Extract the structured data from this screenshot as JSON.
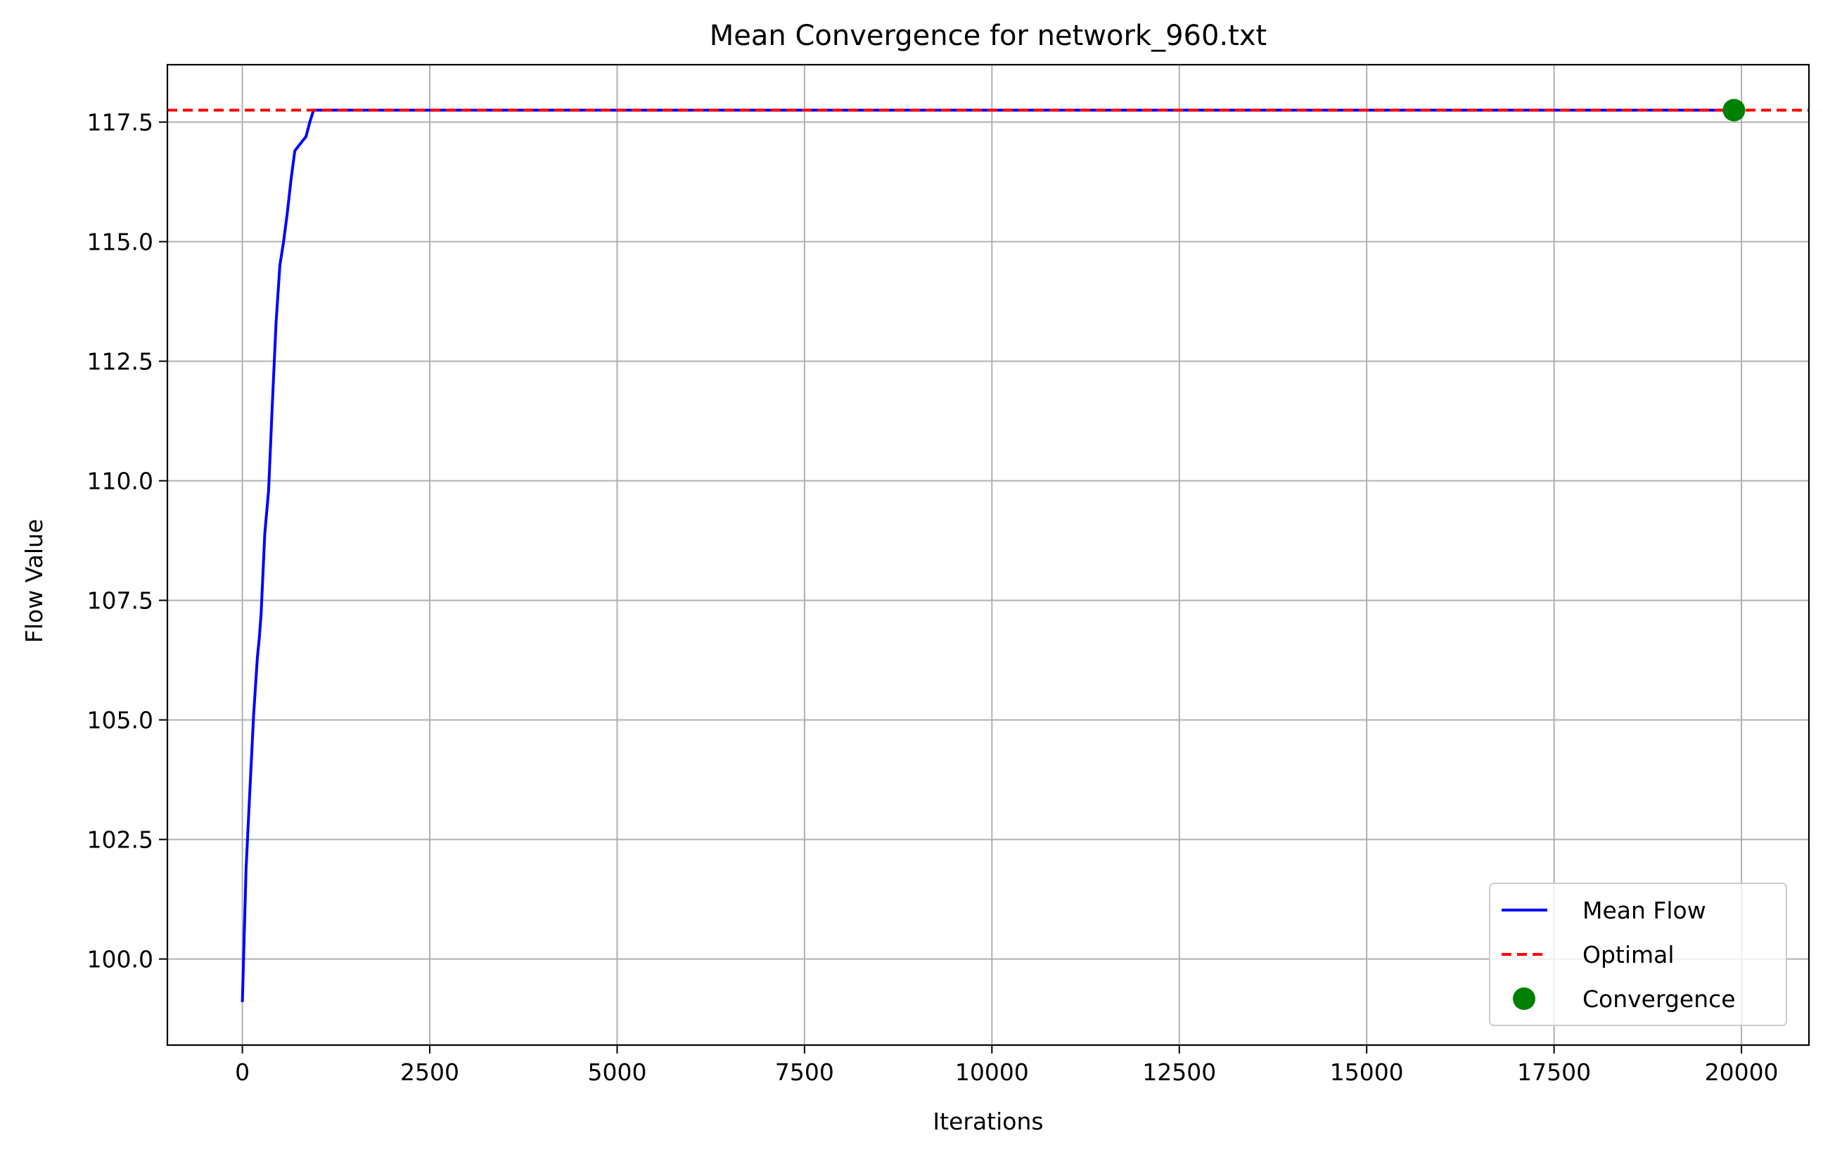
{
  "chart_data": {
    "type": "line",
    "title": "Mean Convergence for network_960.txt",
    "xlabel": "Iterations",
    "ylabel": "Flow Value",
    "xlim": [
      -1000,
      20900
    ],
    "ylim": [
      98.2,
      118.7
    ],
    "xticks": [
      0,
      2500,
      5000,
      7500,
      10000,
      12500,
      15000,
      17500,
      20000
    ],
    "xtick_labels": [
      "0",
      "2500",
      "5000",
      "7500",
      "10000",
      "12500",
      "15000",
      "17500",
      "20000"
    ],
    "yticks": [
      100.0,
      102.5,
      105.0,
      107.5,
      110.0,
      112.5,
      115.0,
      117.5
    ],
    "ytick_labels": [
      "100.0",
      "102.5",
      "105.0",
      "107.5",
      "110.0",
      "112.5",
      "115.0",
      "117.5"
    ],
    "grid": true,
    "legend_position": "lower-right",
    "series": [
      {
        "name": "Mean Flow",
        "kind": "line",
        "color": "#0000ff",
        "x": [
          0,
          50,
          100,
          150,
          200,
          225,
          250,
          300,
          350,
          400,
          450,
          500,
          550,
          600,
          650,
          700,
          750,
          800,
          850,
          900,
          950,
          1000,
          1050,
          2000,
          5000,
          10000,
          15000,
          19900
        ],
        "y": [
          99.1,
          101.9,
          103.5,
          105.1,
          106.3,
          106.7,
          107.2,
          108.9,
          109.8,
          111.6,
          113.3,
          114.5,
          115.0,
          115.6,
          116.3,
          116.9,
          117.0,
          117.1,
          117.2,
          117.5,
          117.75,
          117.75,
          117.75,
          117.75,
          117.75,
          117.75,
          117.75,
          117.75
        ]
      },
      {
        "name": "Optimal",
        "kind": "hline",
        "color": "#ff0000",
        "linestyle": "dashed",
        "y": 117.75
      },
      {
        "name": "Convergence",
        "kind": "point",
        "color": "#008000",
        "x": 19900,
        "y": 117.75
      }
    ]
  }
}
